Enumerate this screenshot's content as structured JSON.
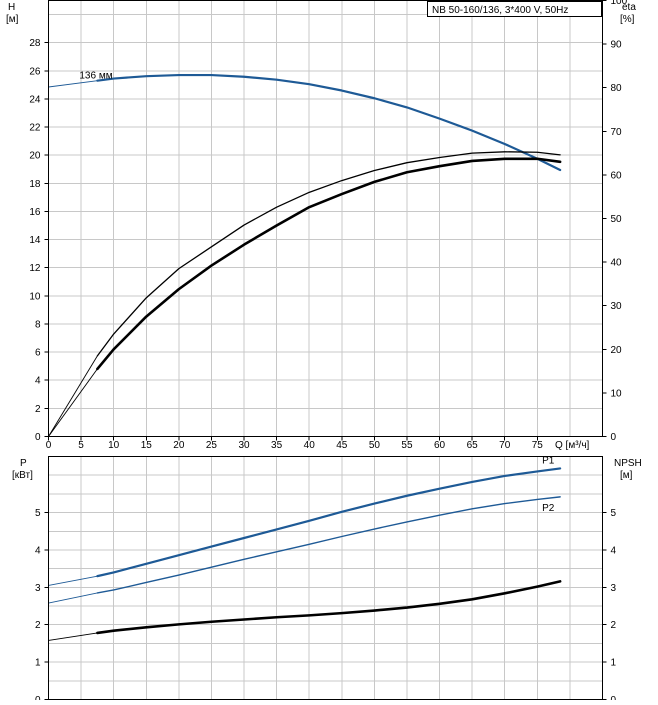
{
  "chart_data": [
    {
      "type": "line",
      "title": "NB 50-160/136, 3*400 V, 50Hz",
      "xlabel": "Q [м³/ч]",
      "xlim": [
        0,
        85
      ],
      "xticks": [
        0,
        5,
        10,
        15,
        20,
        25,
        30,
        35,
        40,
        45,
        50,
        55,
        60,
        65,
        70,
        75
      ],
      "ylabel_left": "H",
      "ylabel_left_unit": "[м]",
      "ylim_left": [
        0,
        31
      ],
      "yticks_left": [
        0,
        2,
        4,
        6,
        8,
        10,
        12,
        14,
        16,
        18,
        20,
        22,
        24,
        26,
        28
      ],
      "ylabel_right": "eta",
      "ylabel_right_unit": "[%]",
      "ylim_right": [
        0,
        100
      ],
      "yticks_right": [
        0,
        10,
        20,
        30,
        40,
        50,
        60,
        70,
        80,
        90,
        100
      ],
      "grid": true,
      "annotations": [
        {
          "text": "136 мм",
          "x": 7.5,
          "y": 25.3
        }
      ],
      "series": [
        {
          "role": "head",
          "axis": "left",
          "color": "#1e5a96",
          "extension_x": [
            0,
            7.5
          ],
          "x": [
            7.5,
            10,
            15,
            20,
            25,
            30,
            35,
            40,
            45,
            50,
            55,
            60,
            65,
            70,
            75,
            78.5
          ],
          "y": [
            25.3,
            25.45,
            25.62,
            25.7,
            25.7,
            25.58,
            25.37,
            25.05,
            24.6,
            24.05,
            23.4,
            22.6,
            21.75,
            20.8,
            19.75,
            18.95
          ]
        },
        {
          "role": "efficiency",
          "axis": "right",
          "color": "#000000",
          "extension_x": [
            0,
            7.5
          ],
          "x": [
            0,
            7.5,
            10,
            15,
            20,
            25,
            30,
            35,
            40,
            45,
            50,
            55,
            60,
            65,
            70,
            75,
            78.5
          ],
          "y": [
            0,
            18.5,
            23.5,
            31.8,
            38.5,
            43.5,
            48.5,
            52.6,
            56.0,
            58.7,
            61.0,
            62.8,
            64.0,
            65.0,
            65.3,
            65.2,
            64.6
          ]
        },
        {
          "role": "efficiency",
          "axis": "right",
          "color": "#000000",
          "extension_x": [
            0,
            7.5
          ],
          "x": [
            0,
            7.5,
            10,
            15,
            20,
            25,
            30,
            35,
            40,
            45,
            50,
            55,
            60,
            65,
            70,
            75,
            78.5
          ],
          "y": [
            0,
            15.5,
            20.0,
            27.5,
            33.8,
            39.2,
            44.0,
            48.4,
            52.6,
            55.6,
            58.4,
            60.6,
            62.0,
            63.2,
            63.7,
            63.7,
            63.0
          ]
        }
      ]
    },
    {
      "type": "line",
      "xlim": [
        0,
        85
      ],
      "ylabel_left": "P",
      "ylabel_left_unit": "[кВт]",
      "ylim_left": [
        0,
        6.5
      ],
      "yticks_left": [
        0,
        1,
        2,
        3,
        4,
        5
      ],
      "ylabel_right": "NPSH",
      "ylabel_right_unit": "[м]",
      "ylim_right": [
        0,
        6.5
      ],
      "yticks_right": [
        0,
        1,
        2,
        3,
        4,
        5
      ],
      "grid": true,
      "series": [
        {
          "name": "P1",
          "axis": "left",
          "color": "#1e5a96",
          "extension_x": [
            0,
            7.5
          ],
          "x": [
            0,
            7.5,
            10,
            15,
            20,
            25,
            30,
            35,
            40,
            45,
            50,
            55,
            60,
            65,
            70,
            75,
            78.5
          ],
          "y": [
            3.05,
            3.3,
            3.4,
            3.63,
            3.86,
            4.09,
            4.32,
            4.55,
            4.78,
            5.02,
            5.24,
            5.45,
            5.64,
            5.82,
            5.98,
            6.1,
            6.18
          ]
        },
        {
          "name": "P2",
          "axis": "left",
          "color": "#1e5a96",
          "extension_x": [
            0,
            7.5
          ],
          "x": [
            0,
            7.5,
            10,
            15,
            20,
            25,
            30,
            35,
            40,
            45,
            50,
            55,
            60,
            65,
            70,
            75,
            78.5
          ],
          "y": [
            2.58,
            2.85,
            2.93,
            3.13,
            3.33,
            3.54,
            3.75,
            3.95,
            4.15,
            4.36,
            4.56,
            4.75,
            4.93,
            5.1,
            5.24,
            5.35,
            5.42
          ]
        },
        {
          "role": "npsh",
          "axis": "right",
          "color": "#000000",
          "extension_x": [
            0,
            7.5
          ],
          "x": [
            0,
            7.5,
            10,
            15,
            20,
            25,
            30,
            35,
            40,
            45,
            50,
            55,
            60,
            65,
            70,
            75,
            78.5
          ],
          "y": [
            1.58,
            1.78,
            1.84,
            1.93,
            2.01,
            2.08,
            2.14,
            2.2,
            2.25,
            2.31,
            2.38,
            2.46,
            2.56,
            2.68,
            2.84,
            3.02,
            3.16
          ]
        }
      ]
    }
  ]
}
